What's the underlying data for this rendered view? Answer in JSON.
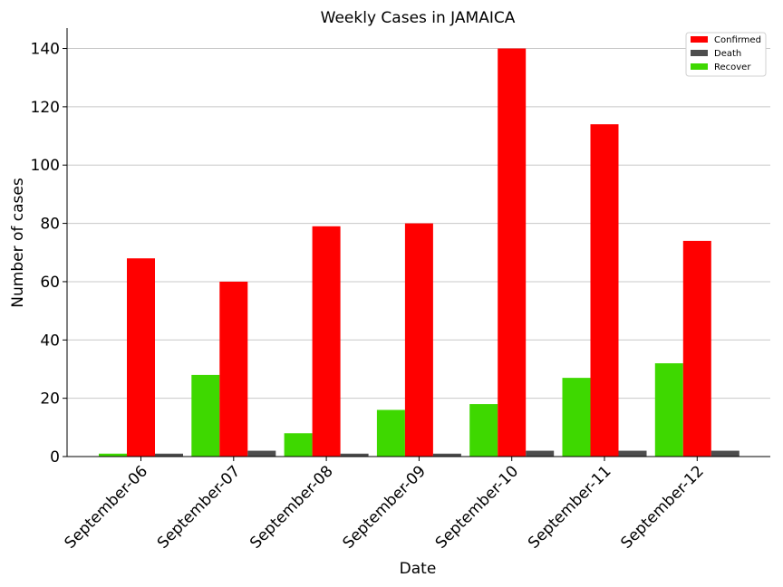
{
  "chart_data": {
    "type": "bar",
    "title": "Weekly Cases in JAMAICA",
    "xlabel": "Date",
    "ylabel": "Number of cases",
    "categories": [
      "September-06",
      "September-07",
      "September-08",
      "September-09",
      "September-10",
      "September-11",
      "September-12"
    ],
    "series": [
      {
        "name": "Recover",
        "color": "#3ed800",
        "values": [
          1,
          28,
          8,
          16,
          18,
          27,
          32
        ]
      },
      {
        "name": "Confirmed",
        "color": "#ff0000",
        "values": [
          68,
          60,
          79,
          80,
          140,
          114,
          74
        ]
      },
      {
        "name": "Death",
        "color": "#4d4d4d",
        "values": [
          1,
          2,
          1,
          1,
          2,
          2,
          2
        ]
      }
    ],
    "legend": {
      "position": "top-right",
      "entries": [
        "Confirmed",
        "Death",
        "Recover"
      ]
    },
    "ylim": [
      0,
      147
    ],
    "yticks": [
      0,
      20,
      40,
      60,
      80,
      100,
      120,
      140
    ],
    "grid": "horizontal",
    "xtick_rotation": 45
  }
}
